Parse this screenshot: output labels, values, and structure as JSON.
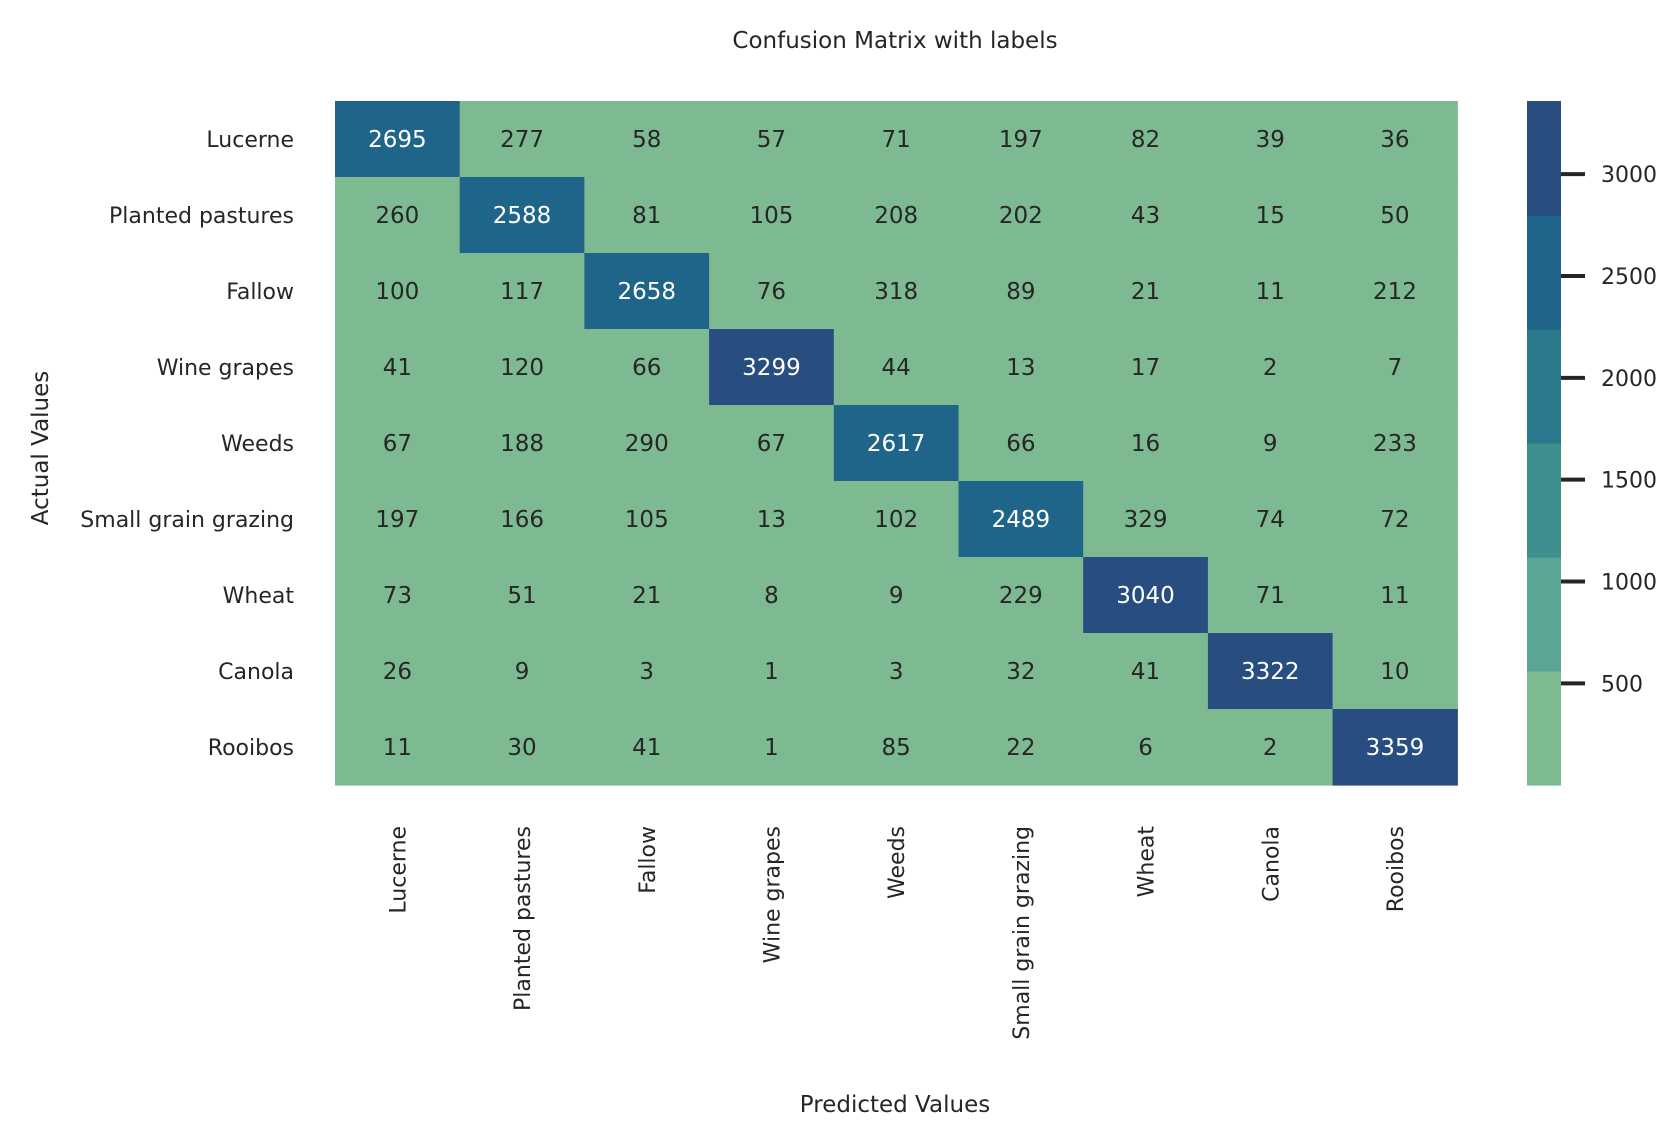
{
  "chart_data": {
    "type": "heatmap",
    "title": "Confusion Matrix with labels",
    "xlabel": "Predicted Values",
    "ylabel": "Actual Values",
    "x_categories": [
      "Lucerne",
      "Planted pastures",
      "Fallow",
      "Wine grapes",
      "Weeds",
      "Small grain grazing",
      "Wheat",
      "Canola",
      "Rooibos"
    ],
    "y_categories": [
      "Lucerne",
      "Planted pastures",
      "Fallow",
      "Wine grapes",
      "Weeds",
      "Small grain grazing",
      "Wheat",
      "Canola",
      "Rooibos"
    ],
    "values": [
      [
        2695,
        277,
        58,
        57,
        71,
        197,
        82,
        39,
        36
      ],
      [
        260,
        2588,
        81,
        105,
        208,
        202,
        43,
        15,
        50
      ],
      [
        100,
        117,
        2658,
        76,
        318,
        89,
        21,
        11,
        212
      ],
      [
        41,
        120,
        66,
        3299,
        44,
        13,
        17,
        2,
        7
      ],
      [
        67,
        188,
        290,
        67,
        2617,
        66,
        16,
        9,
        233
      ],
      [
        197,
        166,
        105,
        13,
        102,
        2489,
        329,
        74,
        72
      ],
      [
        73,
        51,
        21,
        8,
        9,
        229,
        3040,
        71,
        11
      ],
      [
        26,
        9,
        3,
        1,
        3,
        32,
        41,
        3322,
        10
      ],
      [
        11,
        30,
        41,
        1,
        85,
        22,
        6,
        2,
        3359
      ]
    ],
    "colorbar": {
      "ticks": [
        500,
        1000,
        1500,
        2000,
        2500,
        3000
      ],
      "range": [
        1,
        3359
      ],
      "colors": [
        "#7eba91",
        "#5ba596",
        "#3f8f8f",
        "#2b798c",
        "#1f6489",
        "#284d80"
      ]
    },
    "grid": false,
    "annotations": true
  }
}
